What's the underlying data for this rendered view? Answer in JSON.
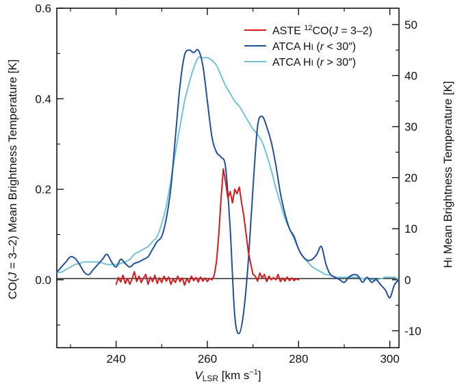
{
  "chart_data": {
    "type": "line",
    "xlabel": {
      "v": "V",
      "sub": "LSR",
      "rest": " [km s",
      "exp": "−1",
      "end": "]"
    },
    "ylabel_left": {
      "a": "CO(",
      "j": "J",
      "b": " = 3–2) Mean Brightness Temperature [K]"
    },
    "ylabel_right": {
      "h": "H",
      "i": "I",
      "rest": " Mean Brightness Temperature [K]"
    },
    "xlim": [
      227,
      302
    ],
    "ylim_left": [
      -0.15,
      0.6
    ],
    "ylim_right": [
      -13.3,
      53.2
    ],
    "x_ticks": [
      240,
      260,
      280,
      300
    ],
    "y_ticks_left": [
      0.0,
      0.2,
      0.4,
      0.6
    ],
    "y_ticks_right": [
      -10,
      0,
      10,
      20,
      30,
      40,
      50
    ],
    "x_tick_labels": [
      "240",
      "260",
      "280",
      "300"
    ],
    "y_tick_labels_left": [
      "0.0",
      "0.2",
      "0.4",
      "0.6"
    ],
    "y_tick_labels_right": [
      "-10",
      "0",
      "10",
      "20",
      "30",
      "40",
      "50"
    ],
    "zero_line": true,
    "legend_position": "top-right",
    "colors": {
      "co": "#d7191c",
      "hi_inner": "#1f4e9c",
      "hi_outer": "#72c2d6"
    },
    "legend": [
      {
        "name_a": "ASTE ",
        "sup": "12",
        "name_b": "CO(",
        "j": "J",
        "name_c": " = 3–2)",
        "color": "#d7191c"
      },
      {
        "name_a": "ATCA H",
        "sc": "I",
        "name_b": " (",
        "r": "r",
        "name_c": " < 30″)",
        "color": "#1f4e9c"
      },
      {
        "name_a": "ATCA H",
        "sc": "I",
        "name_b": " (",
        "r": "r",
        "name_c": " > 30″)",
        "color": "#72c2d6"
      }
    ],
    "series": [
      {
        "key": "co",
        "axis": "left",
        "color": "#d7191c",
        "x": [
          240,
          240.5,
          241,
          241.5,
          242,
          242.5,
          243,
          243.5,
          244,
          244.5,
          245,
          245.5,
          246,
          246.5,
          247,
          247.5,
          248,
          248.5,
          249,
          249.5,
          250,
          250.5,
          251,
          251.5,
          252,
          252.5,
          253,
          253.5,
          254,
          254.5,
          255,
          255.5,
          256,
          256.5,
          257,
          257.5,
          258,
          258.5,
          259,
          259.5,
          260,
          260.5,
          261,
          261.5,
          262,
          262.5,
          263,
          263.5,
          264,
          264.5,
          265,
          265.5,
          266,
          266.5,
          267,
          267.5,
          268,
          268.5,
          269,
          269.5,
          270,
          270.5,
          271,
          271.5,
          272,
          272.5,
          273,
          273.5,
          274,
          274.5,
          275,
          275.5,
          276,
          276.5,
          277,
          277.5,
          278,
          278.5,
          279,
          279.5,
          280
        ],
        "y": [
          -0.01,
          0.005,
          -0.005,
          0.01,
          -0.008,
          0.003,
          -0.01,
          0.002,
          0.018,
          -0.004,
          0.008,
          -0.006,
          0.004,
          0.012,
          -0.01,
          0.006,
          -0.004,
          0.01,
          -0.008,
          0.004,
          -0.006,
          0.008,
          -0.003,
          0.006,
          -0.01,
          0.002,
          -0.006,
          0.008,
          -0.004,
          0.004,
          -0.012,
          0.003,
          -0.006,
          0.008,
          -0.002,
          0.005,
          -0.005,
          0.006,
          -0.003,
          0.004,
          -0.004,
          0.003,
          0.0,
          0.01,
          0.04,
          0.1,
          0.18,
          0.245,
          0.215,
          0.18,
          0.195,
          0.17,
          0.2,
          0.19,
          0.205,
          0.17,
          0.14,
          0.1,
          0.06,
          0.035,
          0.012,
          0.008,
          -0.003,
          0.015,
          0.004,
          0.012,
          -0.004,
          0.008,
          0.0,
          0.005,
          0.0,
          0.012,
          -0.004,
          0.004,
          -0.003,
          0.006,
          -0.002,
          0.004,
          -0.002,
          0.002,
          0.0
        ]
      },
      {
        "key": "hi_inner",
        "axis": "right",
        "color": "#1f4e9c",
        "x": [
          227,
          228,
          229,
          230,
          231,
          232,
          233,
          234,
          235,
          236,
          237,
          238,
          239,
          240,
          241,
          242,
          243,
          244,
          245,
          246,
          247,
          248,
          249,
          250,
          251,
          252,
          253,
          254,
          255,
          256,
          257,
          258,
          259,
          260,
          261,
          262,
          263,
          264,
          265,
          266,
          267,
          268,
          269,
          270,
          271,
          272,
          273,
          274,
          275,
          276,
          277,
          278,
          279,
          280,
          281,
          282,
          283,
          284,
          285,
          286,
          287,
          288,
          289,
          290,
          291,
          292,
          293,
          294,
          295,
          296,
          297,
          298,
          299,
          300,
          301,
          302
        ],
        "y": [
          1.5,
          2.5,
          3.5,
          4.5,
          4.2,
          3,
          1.5,
          1,
          2,
          3,
          4,
          5,
          3.5,
          2.5,
          4,
          3.2,
          2.5,
          3.2,
          3.5,
          4,
          4.5,
          6,
          7.5,
          8.5,
          12,
          18,
          28,
          38,
          44,
          45,
          44.5,
          45,
          42,
          35,
          28,
          25,
          24,
          22,
          10,
          -7,
          -10.5,
          -6,
          4,
          18,
          30,
          32,
          30,
          27,
          22.5,
          17,
          13,
          10,
          8.5,
          6,
          4.5,
          3.8,
          4,
          5,
          6.5,
          3,
          1,
          0.5,
          0,
          -0.5,
          0.5,
          1,
          0.8,
          -0.5,
          0.5,
          -0.5,
          0,
          -1,
          -2,
          -3.5,
          -1,
          0
        ]
      },
      {
        "key": "hi_outer",
        "axis": "right",
        "color": "#72c2d6",
        "x": [
          227,
          228,
          229,
          230,
          231,
          232,
          233,
          234,
          235,
          236,
          237,
          238,
          239,
          240,
          241,
          242,
          243,
          244,
          245,
          246,
          247,
          248,
          249,
          250,
          251,
          252,
          253,
          254,
          255,
          256,
          257,
          258,
          259,
          260,
          261,
          262,
          263,
          264,
          265,
          266,
          267,
          268,
          269,
          270,
          271,
          272,
          273,
          274,
          275,
          276,
          277,
          278,
          279,
          280,
          281,
          282,
          283,
          284,
          285,
          286,
          287,
          288,
          289,
          290,
          291,
          292,
          293,
          294,
          295,
          296,
          297,
          298,
          299,
          300,
          301,
          302
        ],
        "y": [
          1.5,
          1.5,
          2,
          2.5,
          3,
          3.2,
          3.5,
          3.5,
          3.5,
          3.5,
          3.3,
          3,
          3,
          3,
          3.2,
          3.5,
          4,
          5,
          5.5,
          6,
          6.5,
          7.5,
          8.5,
          11,
          14.5,
          19.5,
          25,
          30,
          35,
          38.5,
          41.5,
          43.5,
          43.5,
          43.5,
          43,
          42,
          40,
          38,
          36.5,
          35,
          34,
          32.5,
          31,
          29.5,
          28.5,
          27,
          24.5,
          21.5,
          18,
          15,
          12,
          10,
          8,
          6,
          4.5,
          3.5,
          2.5,
          2,
          1.5,
          1,
          1,
          0.5,
          0.5,
          0.5,
          0.5,
          0.5,
          0.5,
          0.2,
          0.2,
          0,
          0,
          0.2,
          0.5,
          0.5,
          0.5,
          0
        ]
      }
    ]
  }
}
